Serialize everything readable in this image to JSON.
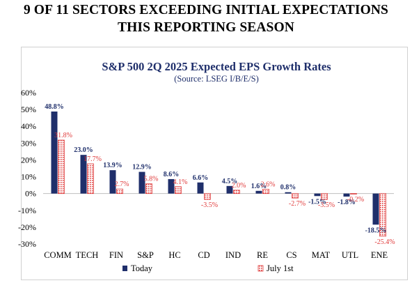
{
  "headline": {
    "line1": "9 OF 11 SECTORS EXCEEDING INITIAL EXPECTATIONS",
    "line2": "THIS REPORTING SEASON"
  },
  "chart_data": {
    "type": "bar",
    "title": "S&P 500 2Q 2025 Expected EPS Growth Rates",
    "subtitle": "(Source: LSEG I/B/E/S)",
    "categories": [
      "COMM",
      "TECH",
      "FIN",
      "S&P",
      "HC",
      "CD",
      "IND",
      "RE",
      "CS",
      "MAT",
      "UTL",
      "ENE"
    ],
    "series": [
      {
        "name": "Today",
        "color": "#1f2f6b",
        "values": [
          48.8,
          23.0,
          13.9,
          12.9,
          8.6,
          6.6,
          4.5,
          1.6,
          0.8,
          -1.5,
          -1.8,
          -18.5
        ],
        "labels": [
          "48.8%",
          "23.0%",
          "13.9%",
          "12.9%",
          "8.6%",
          "6.6%",
          "4.5%",
          "1.6%",
          "0.8%",
          "-1.5%",
          "-1.8%",
          "-18.5%"
        ]
      },
      {
        "name": "July 1st",
        "color": "#e03c3c",
        "values": [
          31.8,
          17.7,
          2.7,
          5.8,
          4.1,
          -3.5,
          2.0,
          2.6,
          -2.7,
          -3.5,
          -0.2,
          -25.4
        ],
        "labels": [
          "31.8%",
          "17.7%",
          "2.7%",
          "5.8%",
          "4.1%",
          "-3.5%",
          "2.0%",
          "2.6%",
          "-2.7%",
          "-3.5%",
          "-0.2%",
          "-25.4%"
        ]
      }
    ],
    "yticks": [
      60,
      50,
      40,
      30,
      20,
      10,
      0,
      -10,
      -20,
      -30
    ],
    "ytick_labels": [
      "60%",
      "50%",
      "40%",
      "30%",
      "20%",
      "10%",
      "0%",
      "-10%",
      "-20%",
      "-30%"
    ],
    "ylim": [
      -30,
      60
    ],
    "legend_position": "bottom",
    "grid": false
  }
}
